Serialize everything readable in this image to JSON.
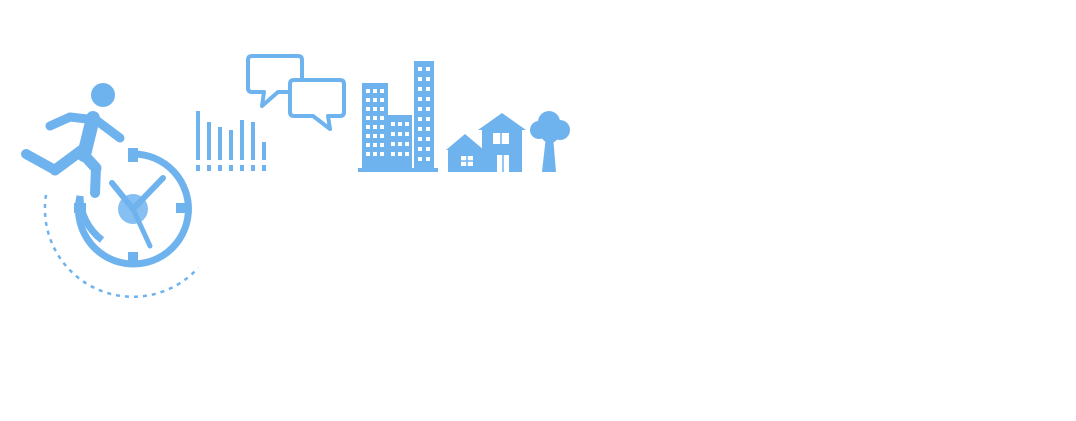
{
  "palette": {
    "primary": "#6fb3ee",
    "light": "#86c0f2",
    "background": "#ffffff"
  },
  "icons": [
    "running-person-icon",
    "stopwatch-icon",
    "bar-signal-icon",
    "speech-bubbles-icon",
    "city-buildings-icon",
    "houses-icon",
    "tree-icon"
  ],
  "bar_signal": {
    "levels": [
      1.0,
      0.78,
      0.67,
      0.61,
      0.82,
      0.78,
      0.37
    ]
  }
}
